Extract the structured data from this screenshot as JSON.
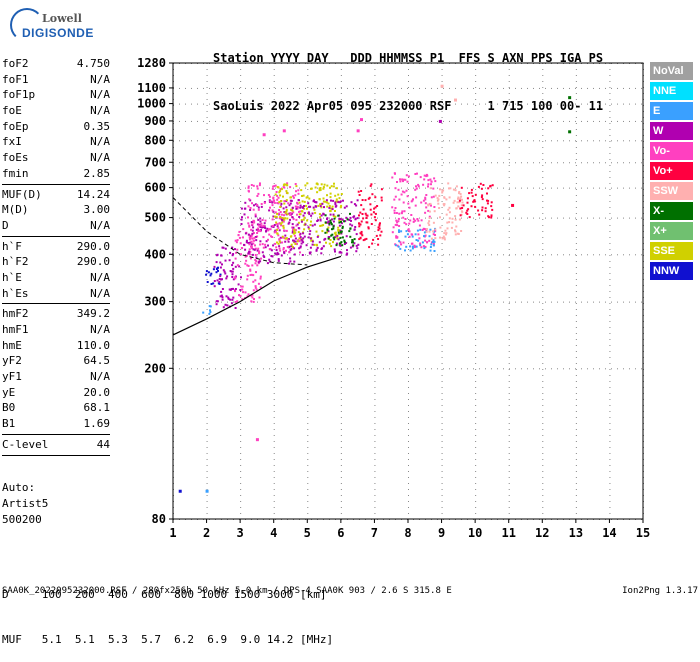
{
  "logo": {
    "line1": "Lowell",
    "line2": "DIGISONDE"
  },
  "header": {
    "line1": "Station YYYY DAY   DDD HHMMSS P1  FFS S AXN PPS IGA PS",
    "line2": "SaoLuis 2022 Apr05 095 232000 RSF     1 715 100 00- 11"
  },
  "params": [
    {
      "name": "foF2",
      "value": "4.750"
    },
    {
      "name": "foF1",
      "value": "N/A"
    },
    {
      "name": "foF1p",
      "value": "N/A"
    },
    {
      "name": "foE",
      "value": "N/A"
    },
    {
      "name": "foEp",
      "value": "0.35"
    },
    {
      "name": "fxI",
      "value": "N/A"
    },
    {
      "name": "foEs",
      "value": "N/A"
    },
    {
      "name": "fmin",
      "value": "2.85"
    },
    {
      "sep": true
    },
    {
      "name": "MUF(D)",
      "value": "14.24"
    },
    {
      "name": "M(D)",
      "value": "3.00"
    },
    {
      "name": "D",
      "value": "N/A"
    },
    {
      "sep": true
    },
    {
      "name": "h`F",
      "value": "290.0"
    },
    {
      "name": "h`F2",
      "value": "290.0"
    },
    {
      "name": "h`E",
      "value": "N/A"
    },
    {
      "name": "h`Es",
      "value": "N/A"
    },
    {
      "sep": true
    },
    {
      "name": "hmF2",
      "value": "349.2"
    },
    {
      "name": "hmF1",
      "value": "N/A"
    },
    {
      "name": "hmE",
      "value": "110.0"
    },
    {
      "name": "yF2",
      "value": "64.5"
    },
    {
      "name": "yF1",
      "value": "N/A"
    },
    {
      "name": "yE",
      "value": "20.0"
    },
    {
      "name": "B0",
      "value": "68.1"
    },
    {
      "name": "B1",
      "value": "1.69"
    },
    {
      "sep": true
    },
    {
      "name": "C-level",
      "value": "44"
    },
    {
      "sep": true
    }
  ],
  "auto": {
    "line1": "Auto:",
    "line2": "Artist5",
    "line3": "500200"
  },
  "legend": [
    {
      "label": "NoVal",
      "color": "#a0a0a0"
    },
    {
      "label": "NNE",
      "color": "#00e0ff"
    },
    {
      "label": "E",
      "color": "#3aa0ff"
    },
    {
      "label": "W",
      "color": "#b000b0"
    },
    {
      "label": "Vo-",
      "color": "#ff40c0"
    },
    {
      "label": "Vo+",
      "color": "#ff0040"
    },
    {
      "label": "SSW",
      "color": "#ffb0b0"
    },
    {
      "label": "X-",
      "color": "#007000"
    },
    {
      "label": "X+",
      "color": "#70c070"
    },
    {
      "label": "SSE",
      "color": "#d0d000"
    },
    {
      "label": "NNW",
      "color": "#1010d0"
    }
  ],
  "dmuf": {
    "line1": "D     100  200  400  600  800 1000 1500 3000 [km]",
    "line2": "MUF   5.1  5.1  5.3  5.7  6.2  6.9  9.0 14.2 [MHz]"
  },
  "footer": {
    "left": "SAA0K_2022095232000.RSF / 280fx256h 50 kHz 5.0 km / DPS-4 SAA0K 903 / 2.6 S 315.8 E",
    "right": "Ion2Png 1.3.17"
  },
  "chart_data": {
    "type": "scatter",
    "title": "",
    "xlabel": "",
    "ylabel": "",
    "x_ticks": [
      1,
      2,
      3,
      4,
      5,
      6,
      7,
      8,
      9,
      10,
      11,
      12,
      13,
      14,
      15
    ],
    "y_ticks": [
      80,
      200,
      300,
      400,
      500,
      600,
      700,
      800,
      900,
      1000,
      1100,
      1280
    ],
    "xlim": [
      1,
      15
    ],
    "ylim": [
      80,
      1280
    ],
    "y_scale": "log",
    "clusters": [
      {
        "x": [
          1.8,
          2.2
        ],
        "y": [
          280,
          300
        ],
        "color": "#3aa0ff"
      },
      {
        "x": [
          1.9,
          2.4
        ],
        "y": [
          330,
          380
        ],
        "color": "#1010d0"
      },
      {
        "x": [
          2.2,
          3.0
        ],
        "y": [
          290,
          420
        ],
        "color": "#b000b0"
      },
      {
        "x": [
          2.8,
          3.6
        ],
        "y": [
          300,
          470
        ],
        "color": "#ff40c0"
      },
      {
        "x": [
          3.0,
          4.6
        ],
        "y": [
          380,
          560
        ],
        "color": "#b000b0"
      },
      {
        "x": [
          3.2,
          4.8
        ],
        "y": [
          400,
          620
        ],
        "color": "#ff40c0"
      },
      {
        "x": [
          4.0,
          6.0
        ],
        "y": [
          420,
          620
        ],
        "color": "#d0d000"
      },
      {
        "x": [
          4.5,
          6.5
        ],
        "y": [
          400,
          560
        ],
        "color": "#b000b0"
      },
      {
        "x": [
          5.5,
          6.4
        ],
        "y": [
          420,
          520
        ],
        "color": "#007000"
      },
      {
        "x": [
          6.5,
          7.2
        ],
        "y": [
          420,
          620
        ],
        "color": "#ff0040"
      },
      {
        "x": [
          7.5,
          8.8
        ],
        "y": [
          420,
          660
        ],
        "color": "#ff40c0"
      },
      {
        "x": [
          7.6,
          8.8
        ],
        "y": [
          410,
          470
        ],
        "color": "#3aa0ff"
      },
      {
        "x": [
          8.5,
          9.6
        ],
        "y": [
          440,
          620
        ],
        "color": "#ffb0b0"
      },
      {
        "x": [
          9.5,
          10.5
        ],
        "y": [
          500,
          620
        ],
        "color": "#ff0040"
      }
    ],
    "sparse_points": [
      {
        "x": 12.8,
        "y": 1040,
        "color": "#007000"
      },
      {
        "x": 12.8,
        "y": 845,
        "color": "#007000"
      },
      {
        "x": 9.4,
        "y": 1025,
        "color": "#ffb0b0"
      },
      {
        "x": 9.0,
        "y": 1115,
        "color": "#ffb0b0"
      },
      {
        "x": 8.95,
        "y": 900,
        "color": "#b000b0"
      },
      {
        "x": 6.6,
        "y": 910,
        "color": "#ff40c0"
      },
      {
        "x": 6.5,
        "y": 850,
        "color": "#ff40c0"
      },
      {
        "x": 4.3,
        "y": 850,
        "color": "#ff40c0"
      },
      {
        "x": 3.7,
        "y": 830,
        "color": "#ff40c0"
      },
      {
        "x": 11.1,
        "y": 540,
        "color": "#ff0040"
      },
      {
        "x": 1.2,
        "y": 95,
        "color": "#1010d0"
      },
      {
        "x": 2.0,
        "y": 95,
        "color": "#3aa0ff"
      },
      {
        "x": 3.5,
        "y": 130,
        "color": "#ff40c0"
      }
    ],
    "profile_curve": {
      "x": [
        1,
        2,
        3,
        4,
        5,
        6
      ],
      "y": [
        245,
        270,
        300,
        340,
        370,
        395
      ]
    },
    "trace_curve": {
      "x": [
        1,
        2,
        3,
        4,
        5
      ],
      "y": [
        565,
        460,
        400,
        380,
        375
      ]
    }
  }
}
